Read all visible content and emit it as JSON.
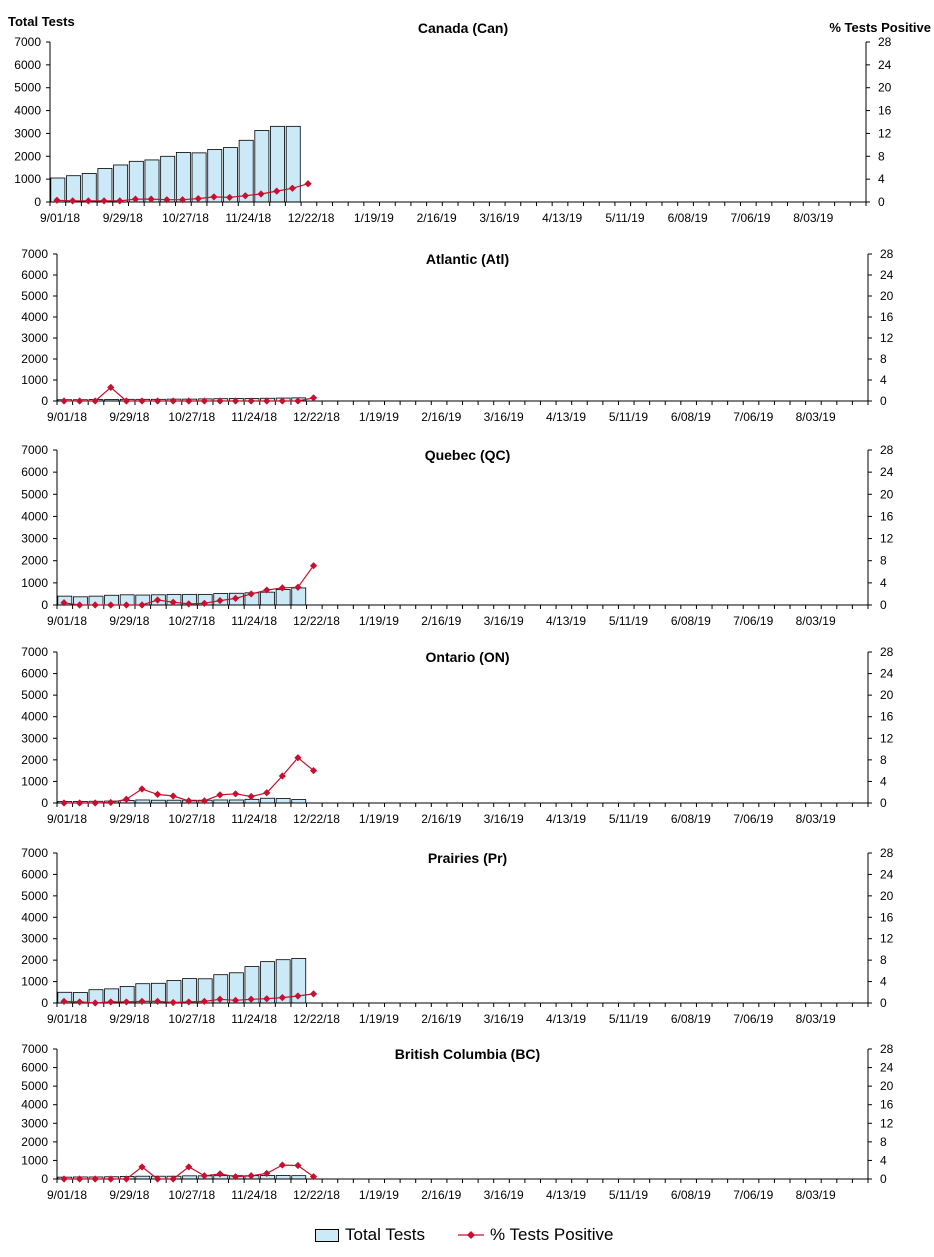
{
  "chart_data": [
    {
      "type": "bar+line",
      "title": "Canada (Can)",
      "left_axis_label": "Total Tests",
      "right_axis_label": "%  Tests Positive",
      "x_tick_labels": [
        "9/01/18",
        "9/29/18",
        "10/27/18",
        "11/24/18",
        "12/22/18",
        "1/19/19",
        "2/16/19",
        "3/16/19",
        "4/13/19",
        "5/11/19",
        "6/08/19",
        "7/06/19",
        "8/03/19"
      ],
      "left_ylim": [
        0,
        7000
      ],
      "left_ticks": [
        0,
        1000,
        2000,
        3000,
        4000,
        5000,
        6000,
        7000
      ],
      "right_ylim": [
        0,
        28
      ],
      "right_ticks": [
        0,
        4,
        8,
        12,
        16,
        20,
        24,
        28
      ],
      "series": [
        {
          "name": "Total Tests",
          "kind": "bar",
          "values": [
            1050,
            1150,
            1250,
            1470,
            1620,
            1780,
            1840,
            2000,
            2170,
            2150,
            2300,
            2380,
            2700,
            3130,
            3310,
            3310
          ]
        },
        {
          "name": "% Tests Positive",
          "kind": "line",
          "values": [
            0.3,
            0.2,
            0.2,
            0.2,
            0.2,
            0.5,
            0.5,
            0.4,
            0.4,
            0.6,
            0.9,
            0.8,
            1.1,
            1.4,
            1.9,
            2.4,
            3.2
          ]
        }
      ]
    },
    {
      "type": "bar+line",
      "title": "Atlantic (Atl)",
      "x_tick_labels": [
        "9/01/18",
        "9/29/18",
        "10/27/18",
        "11/24/18",
        "12/22/18",
        "1/19/19",
        "2/16/19",
        "3/16/19",
        "4/13/19",
        "5/11/19",
        "6/08/19",
        "7/06/19",
        "8/03/19"
      ],
      "left_ylim": [
        0,
        7000
      ],
      "left_ticks": [
        0,
        1000,
        2000,
        3000,
        4000,
        5000,
        6000,
        7000
      ],
      "right_ylim": [
        0,
        28
      ],
      "right_ticks": [
        0,
        4,
        8,
        12,
        16,
        20,
        24,
        28
      ],
      "series": [
        {
          "name": "Total Tests",
          "kind": "bar",
          "values": [
            60,
            60,
            70,
            70,
            80,
            80,
            80,
            90,
            90,
            100,
            110,
            120,
            120,
            130,
            140,
            150
          ]
        },
        {
          "name": "% Tests Positive",
          "kind": "line",
          "values": [
            0,
            0,
            0,
            2.6,
            0,
            0,
            0,
            0,
            0,
            0,
            0,
            0,
            0,
            0,
            0,
            0,
            0.6
          ]
        }
      ]
    },
    {
      "type": "bar+line",
      "title": "Quebec (QC)",
      "x_tick_labels": [
        "9/01/18",
        "9/29/18",
        "10/27/18",
        "11/24/18",
        "12/22/18",
        "1/19/19",
        "2/16/19",
        "3/16/19",
        "4/13/19",
        "5/11/19",
        "6/08/19",
        "7/06/19",
        "8/03/19"
      ],
      "left_ylim": [
        0,
        7000
      ],
      "left_ticks": [
        0,
        1000,
        2000,
        3000,
        4000,
        5000,
        6000,
        7000
      ],
      "right_ylim": [
        0,
        28
      ],
      "right_ticks": [
        0,
        4,
        8,
        12,
        16,
        20,
        24,
        28
      ],
      "series": [
        {
          "name": "Total Tests",
          "kind": "bar",
          "values": [
            400,
            370,
            400,
            440,
            460,
            450,
            460,
            480,
            480,
            480,
            520,
            530,
            550,
            580,
            700,
            770
          ]
        },
        {
          "name": "% Tests Positive",
          "kind": "line",
          "values": [
            0.4,
            0,
            0,
            0,
            0,
            0,
            0.9,
            0.5,
            0.2,
            0.3,
            0.8,
            1.2,
            2,
            2.7,
            3.1,
            3.2,
            7.1
          ]
        }
      ]
    },
    {
      "type": "bar+line",
      "title": "Ontario (ON)",
      "x_tick_labels": [
        "9/01/18",
        "9/29/18",
        "10/27/18",
        "11/24/18",
        "12/22/18",
        "1/19/19",
        "2/16/19",
        "3/16/19",
        "4/13/19",
        "5/11/19",
        "6/08/19",
        "7/06/19",
        "8/03/19"
      ],
      "left_ylim": [
        0,
        7000
      ],
      "left_ticks": [
        0,
        1000,
        2000,
        3000,
        4000,
        5000,
        6000,
        7000
      ],
      "right_ylim": [
        0,
        28
      ],
      "right_ticks": [
        0,
        4,
        8,
        12,
        16,
        20,
        24,
        28
      ],
      "series": [
        {
          "name": "Total Tests",
          "kind": "bar",
          "values": [
            70,
            70,
            80,
            90,
            120,
            140,
            130,
            130,
            130,
            130,
            140,
            140,
            170,
            220,
            210,
            160
          ]
        },
        {
          "name": "% Tests Positive",
          "kind": "line",
          "values": [
            0,
            0,
            0,
            0.1,
            0.7,
            2.6,
            1.6,
            1.3,
            0.4,
            0.4,
            1.5,
            1.7,
            1.2,
            1.9,
            5,
            8.4,
            6
          ]
        }
      ]
    },
    {
      "type": "bar+line",
      "title": "Prairies (Pr)",
      "x_tick_labels": [
        "9/01/18",
        "9/29/18",
        "10/27/18",
        "11/24/18",
        "12/22/18",
        "1/19/19",
        "2/16/19",
        "3/16/19",
        "4/13/19",
        "5/11/19",
        "6/08/19",
        "7/06/19",
        "8/03/19"
      ],
      "left_ylim": [
        0,
        7000
      ],
      "left_ticks": [
        0,
        1000,
        2000,
        3000,
        4000,
        5000,
        6000,
        7000
      ],
      "right_ylim": [
        0,
        28
      ],
      "right_ticks": [
        0,
        4,
        8,
        12,
        16,
        20,
        24,
        28
      ],
      "series": [
        {
          "name": "Total Tests",
          "kind": "bar",
          "values": [
            500,
            490,
            620,
            660,
            770,
            900,
            920,
            1050,
            1140,
            1130,
            1320,
            1410,
            1700,
            1930,
            2020,
            2080
          ]
        },
        {
          "name": "% Tests Positive",
          "kind": "line",
          "values": [
            0.3,
            0.2,
            0,
            0.2,
            0.2,
            0.3,
            0.3,
            0.1,
            0.2,
            0.3,
            0.7,
            0.5,
            0.7,
            0.8,
            1,
            1.3,
            1.7
          ]
        }
      ]
    },
    {
      "type": "bar+line",
      "title": "British Columbia (BC)",
      "x_tick_labels": [
        "9/01/18",
        "9/29/18",
        "10/27/18",
        "11/24/18",
        "12/22/18",
        "1/19/19",
        "2/16/19",
        "3/16/19",
        "4/13/19",
        "5/11/19",
        "6/08/19",
        "7/06/19",
        "8/03/19"
      ],
      "left_ylim": [
        0,
        7000
      ],
      "left_ticks": [
        0,
        1000,
        2000,
        3000,
        4000,
        5000,
        6000,
        7000
      ],
      "right_ylim": [
        0,
        28
      ],
      "right_ticks": [
        0,
        4,
        8,
        12,
        16,
        20,
        24,
        28
      ],
      "series": [
        {
          "name": "Total Tests",
          "kind": "bar",
          "values": [
            100,
            110,
            110,
            120,
            140,
            150,
            150,
            150,
            170,
            170,
            180,
            180,
            180,
            190,
            190,
            180
          ]
        },
        {
          "name": "% Tests Positive",
          "kind": "line",
          "values": [
            0,
            0,
            0,
            0,
            0,
            2.6,
            0,
            0,
            2.6,
            0.7,
            1.1,
            0.5,
            0.7,
            1.2,
            3,
            2.9,
            0.5
          ]
        }
      ]
    }
  ],
  "legend": {
    "bar_label": "Total Tests",
    "line_label": "% Tests Positive"
  },
  "colors": {
    "bar_fill": "#cce9f8",
    "bar_stroke": "#000000",
    "line": "#c8102e"
  }
}
